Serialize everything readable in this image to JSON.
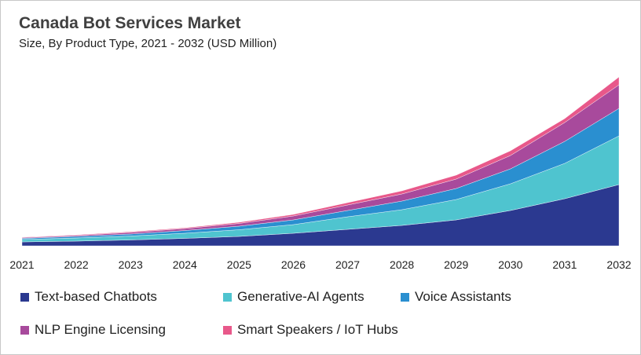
{
  "chart_data": {
    "type": "area",
    "stacked": true,
    "title": "Canada  Bot Services Market",
    "subtitle": "Size, By Product Type, 2021 - 2032 (USD Million)",
    "xlabel": "",
    "ylabel": "",
    "categories": [
      "2021",
      "2022",
      "2023",
      "2024",
      "2025",
      "2026",
      "2027",
      "2028",
      "2029",
      "2030",
      "2031",
      "2032"
    ],
    "y_axis_shown": false,
    "grid": false,
    "legend_position": "bottom",
    "series": [
      {
        "name": "Text-based Chatbots",
        "color": "#2b3990",
        "values": [
          5,
          6,
          7.5,
          9.5,
          12,
          16,
          21,
          26,
          33,
          45,
          60,
          78
        ]
      },
      {
        "name": "Generative-AI Agents",
        "color": "#4fc4cf",
        "values": [
          3,
          4,
          5,
          6.5,
          8.5,
          11,
          16,
          20,
          26,
          34,
          45,
          62
        ]
      },
      {
        "name": "Voice Assistants",
        "color": "#2a8fd0",
        "values": [
          1.5,
          2,
          2.5,
          3.5,
          4.5,
          6,
          8,
          11,
          14,
          19,
          28,
          35
        ]
      },
      {
        "name": "NLP Engine Licensing",
        "color": "#a84a9c",
        "values": [
          1,
          1.3,
          2,
          2.5,
          3.5,
          5,
          7,
          9,
          12,
          17,
          24,
          30
        ]
      },
      {
        "name": "Smart Speakers / IoT Hubs",
        "color": "#e8588a",
        "values": [
          0.5,
          0.7,
          1,
          1,
          1.5,
          2,
          3,
          4,
          5,
          6,
          5,
          10
        ]
      }
    ]
  }
}
